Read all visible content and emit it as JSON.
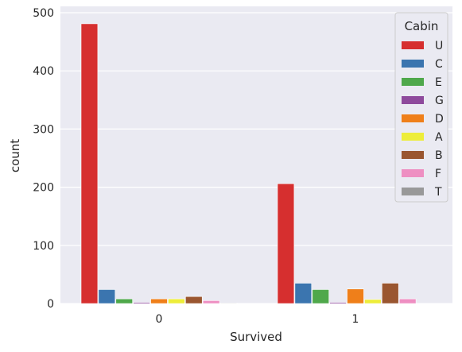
{
  "chart_data": {
    "type": "bar",
    "title": "",
    "xlabel": "Survived",
    "ylabel": "count",
    "categories": [
      "0",
      "1"
    ],
    "ylim": [
      0,
      500
    ],
    "yticks": [
      0,
      100,
      200,
      300,
      400,
      500
    ],
    "grid": true,
    "legend_title": "Cabin",
    "legend_position": "top-right",
    "series": [
      {
        "name": "U",
        "color": "#d62f2f",
        "values": [
          481,
          206
        ]
      },
      {
        "name": "C",
        "color": "#3b75af",
        "values": [
          24,
          35
        ]
      },
      {
        "name": "E",
        "color": "#4fa84b",
        "values": [
          8,
          24
        ]
      },
      {
        "name": "G",
        "color": "#8e4a9c",
        "values": [
          2,
          2
        ]
      },
      {
        "name": "D",
        "color": "#ef7f1a",
        "values": [
          8,
          25
        ]
      },
      {
        "name": "A",
        "color": "#eded3a",
        "values": [
          8,
          7
        ]
      },
      {
        "name": "B",
        "color": "#9a5630",
        "values": [
          12,
          35
        ]
      },
      {
        "name": "F",
        "color": "#ee8fc2",
        "values": [
          5,
          8
        ]
      },
      {
        "name": "T",
        "color": "#999999",
        "values": [
          1,
          0
        ]
      }
    ]
  }
}
